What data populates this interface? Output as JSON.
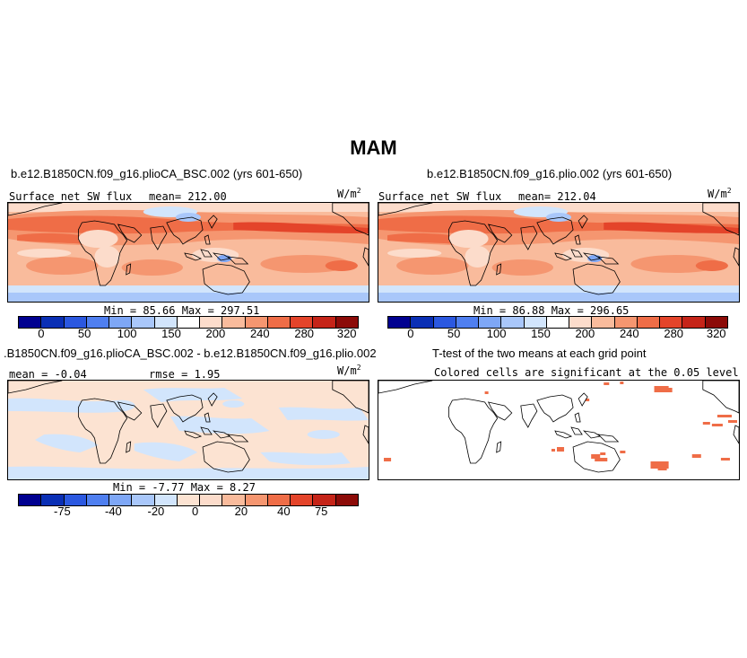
{
  "figure": {
    "title": "MAM"
  },
  "panels": {
    "top_left": {
      "title": "b.e12.B1850CN.f09_g16.plioCA_BSC.002 (yrs 601-650)",
      "variable": "Surface net SW flux",
      "mean": "mean=  212.00",
      "units": "W/m",
      "units_sup": "2",
      "minmax": "Min =   85.66  Max =  297.51"
    },
    "top_right": {
      "title": "b.e12.B1850CN.f09_g16.plio.002 (yrs 601-650)",
      "variable": "Surface net SW flux",
      "mean": "mean=  212.04",
      "units": "W/m",
      "units_sup": "2",
      "minmax": "Min =   86.88  Max =  296.65"
    },
    "bottom_left": {
      "title": ".B1850CN.f09_g16.plioCA_BSC.002 - b.e12.B1850CN.f09_g16.plio.002",
      "mean": "mean =  -0.04",
      "rmse": "rmse =   1.95",
      "units": "W/m",
      "units_sup": "2",
      "minmax": "Min =  -7.77  Max =   8.27"
    },
    "bottom_right": {
      "title": "T-test of the two means at each grid point",
      "subtitle": "Colored cells are significant at the 0.05 level"
    }
  },
  "colorbars": {
    "abs": {
      "colors": [
        "#000090",
        "#0A2FB5",
        "#2B58E0",
        "#4F7FF0",
        "#7EA7F6",
        "#A9C7FA",
        "#D2E5FC",
        "#FFFFFF",
        "#FCDCCB",
        "#F9BB9C",
        "#F59670",
        "#EF6D47",
        "#E4442A",
        "#C52418",
        "#8C0B08"
      ],
      "tick_labels": [
        "0",
        "50",
        "100",
        "150",
        "200",
        "240",
        "280",
        "320"
      ]
    },
    "diff": {
      "colors": [
        "#000090",
        "#0A2FB5",
        "#2B58E0",
        "#4F7FF0",
        "#7EA7F6",
        "#A9C7FA",
        "#D2E5FC",
        "#FCE3D2",
        "#FCDCCB",
        "#F9BB9C",
        "#F59670",
        "#EF6D47",
        "#E4442A",
        "#C52418",
        "#8C0B08"
      ],
      "tick_labels": [
        "-75",
        "-40",
        "-20",
        "0",
        "20",
        "40",
        "75"
      ]
    }
  }
}
